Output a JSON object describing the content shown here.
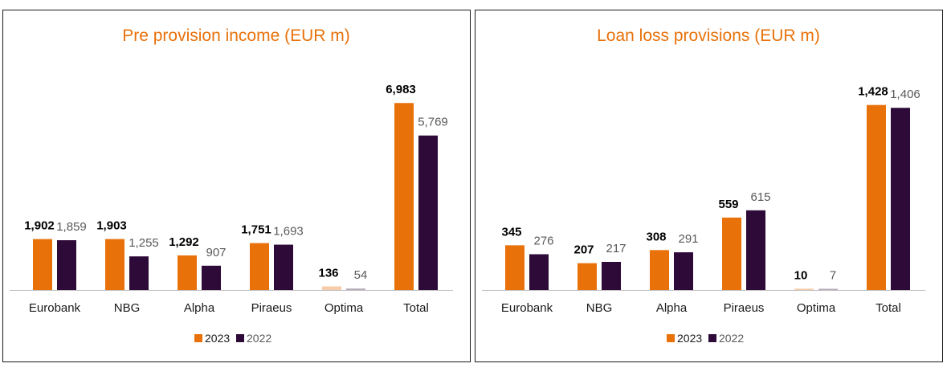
{
  "colors": {
    "series_2023": "#E8710A",
    "series_2022": "#2E0A38",
    "axis": "#BFBFBF",
    "title": "#E8710A"
  },
  "chart_data": [
    {
      "type": "bar",
      "title": "Pre provision income (EUR m)",
      "categories": [
        "Eurobank",
        "NBG",
        "Alpha",
        "Piraeus",
        "Optima",
        "Total"
      ],
      "series": [
        {
          "name": "2023",
          "values": [
            1902,
            1903,
            1292,
            1751,
            136,
            6983
          ],
          "labels": [
            "1,902",
            "1,903",
            "1,292",
            "1,751",
            "136",
            "6,983"
          ]
        },
        {
          "name": "2022",
          "values": [
            1859,
            1255,
            907,
            1693,
            54,
            5769
          ],
          "labels": [
            "1,859",
            "1,255",
            "907",
            "1,693",
            "54",
            "5,769"
          ]
        }
      ],
      "ylim": [
        0,
        7500
      ],
      "grid": false,
      "legend": "bottom"
    },
    {
      "type": "bar",
      "title": "Loan loss provisions (EUR m)",
      "categories": [
        "Eurobank",
        "NBG",
        "Alpha",
        "Piraeus",
        "Optima",
        "Total"
      ],
      "series": [
        {
          "name": "2023",
          "values": [
            345,
            207,
            308,
            559,
            10,
            1428
          ],
          "labels": [
            "345",
            "207",
            "308",
            "559",
            "10",
            "1,428"
          ]
        },
        {
          "name": "2022",
          "values": [
            276,
            217,
            291,
            615,
            7,
            1406
          ],
          "labels": [
            "276",
            "217",
            "291",
            "615",
            "7",
            "1,406"
          ]
        }
      ],
      "ylim": [
        0,
        1550
      ],
      "grid": false,
      "legend": "bottom"
    }
  ]
}
